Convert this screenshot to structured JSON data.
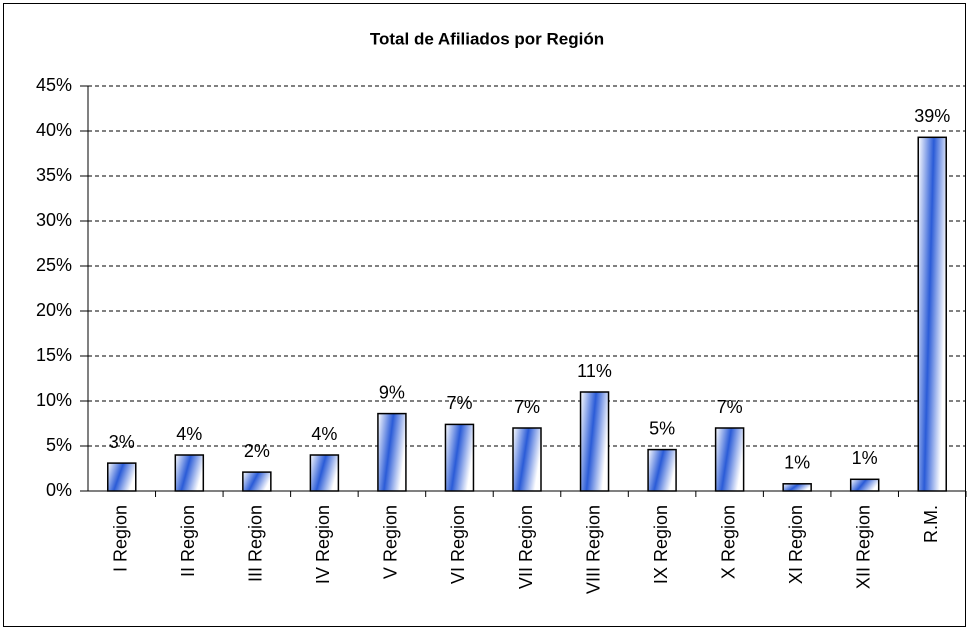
{
  "chart_data": {
    "type": "bar",
    "title": "Total de Afiliados por Región",
    "categories": [
      "I Region",
      "II Region",
      "III Region",
      "IV Region",
      "V Region",
      "VI Region",
      "VII Region",
      "VIII Region",
      "IX Region",
      "X Region",
      "XI Region",
      "XII Region",
      "R.M."
    ],
    "values": [
      3.1,
      4.0,
      2.1,
      4.0,
      8.6,
      7.4,
      7.0,
      11.0,
      4.6,
      7.0,
      0.8,
      1.3,
      39.3
    ],
    "value_labels": [
      "3%",
      "4%",
      "2%",
      "4%",
      "9%",
      "7%",
      "7%",
      "11%",
      "5%",
      "7%",
      "1%",
      "1%",
      "39%"
    ],
    "color": "#2a5bd7",
    "ylim": [
      0,
      45
    ],
    "yticks": [
      {
        "value": 0,
        "label": "0%"
      },
      {
        "value": 5,
        "label": "5%"
      },
      {
        "value": 10,
        "label": "10%"
      },
      {
        "value": 15,
        "label": "15%"
      },
      {
        "value": 20,
        "label": "20%"
      },
      {
        "value": 25,
        "label": "25%"
      },
      {
        "value": 30,
        "label": "30%"
      },
      {
        "value": 35,
        "label": "35%"
      },
      {
        "value": 40,
        "label": "40%"
      },
      {
        "value": 45,
        "label": "45%"
      }
    ],
    "grid": true
  }
}
